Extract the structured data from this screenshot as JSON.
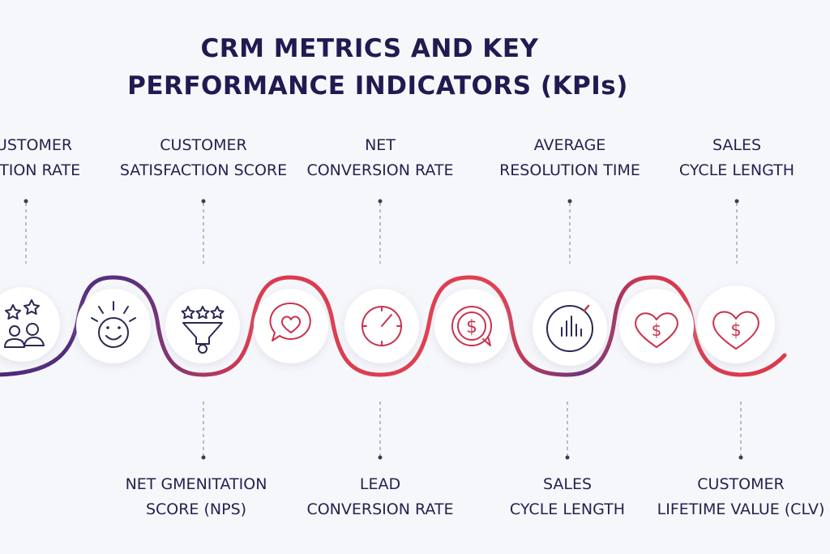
{
  "title": {
    "line1": "CRM METRICS AND KEY",
    "line2": "PERFORMANCE INDICATORS (KPIs)"
  },
  "top_labels": [
    {
      "line1": "USTOMER",
      "line2": "NTION RATE"
    },
    {
      "line1": "CUSTOMER",
      "line2": "SATISFACTION SCORE"
    },
    {
      "line1": "NET",
      "line2": "CONVERSION RATE"
    },
    {
      "line1": "AVERAGE",
      "line2": "RESOLUTION TIME"
    },
    {
      "line1": "SALES",
      "line2": "CYCLE LENGTH"
    }
  ],
  "bottom_labels": [
    {
      "line1": "NET GMENITATION",
      "line2": "SCORE (NPS)"
    },
    {
      "line1": "LEAD",
      "line2": "CONVERSION RATE"
    },
    {
      "line1": "SALES",
      "line2": "CYCLE   LENGTH"
    },
    {
      "line1": "CUSTOMER",
      "line2": "LIFETIME VALUE (CLV)"
    }
  ],
  "nodes": [
    {
      "icon": "stars-people-icon"
    },
    {
      "icon": "smiley-face-icon"
    },
    {
      "icon": "rating-funnel-icon"
    },
    {
      "icon": "heart-chat-icon"
    },
    {
      "icon": "clock-icon"
    },
    {
      "icon": "dollar-cycle-icon"
    },
    {
      "icon": "bar-chart-circle-icon"
    },
    {
      "icon": "heart-dollar-icon"
    },
    {
      "icon": "heart-dollar-icon"
    }
  ],
  "colors": {
    "wave_start": "#4a2a7a",
    "wave_mid": "#d93a4f",
    "wave_end": "#e0394b",
    "text": "#1f1b52"
  }
}
